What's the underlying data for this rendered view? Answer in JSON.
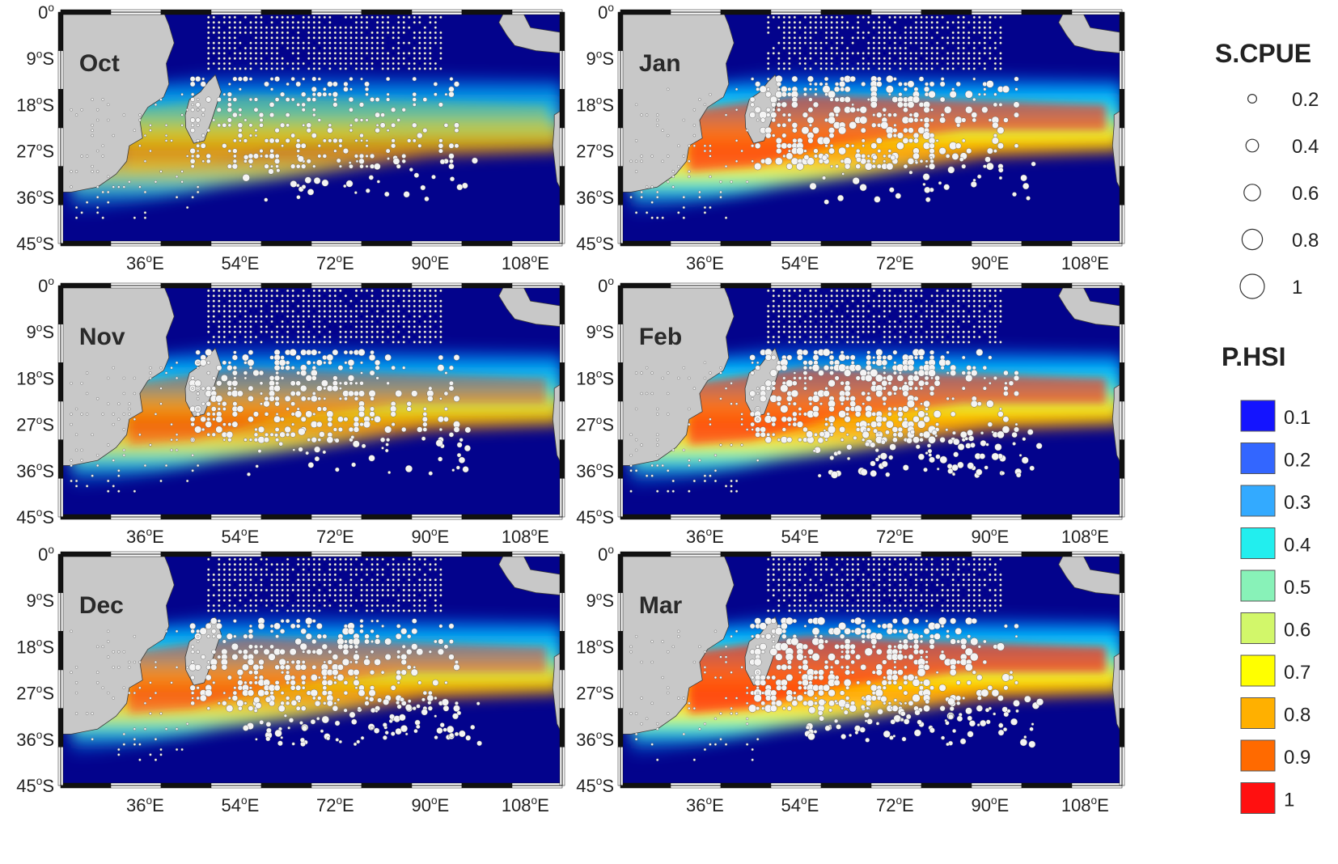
{
  "panels": [
    {
      "id": "oct",
      "month": "Oct",
      "intensity": 0.55
    },
    {
      "id": "jan",
      "month": "Jan",
      "intensity": 0.95
    },
    {
      "id": "nov",
      "month": "Nov",
      "intensity": 0.8
    },
    {
      "id": "feb",
      "month": "Feb",
      "intensity": 0.95
    },
    {
      "id": "dec",
      "month": "Dec",
      "intensity": 0.85
    },
    {
      "id": "mar",
      "month": "Mar",
      "intensity": 1.0
    }
  ],
  "axes": {
    "lat_ticks": [
      {
        "value": 0,
        "label": "0",
        "sup": "o",
        "suffix": ""
      },
      {
        "value": -9,
        "label": "9",
        "sup": "o",
        "suffix": "S"
      },
      {
        "value": -18,
        "label": "18",
        "sup": "o",
        "suffix": "S"
      },
      {
        "value": -27,
        "label": "27",
        "sup": "o",
        "suffix": "S"
      },
      {
        "value": -36,
        "label": "36",
        "sup": "o",
        "suffix": "S"
      },
      {
        "value": -45,
        "label": "45",
        "sup": "o",
        "suffix": "S"
      }
    ],
    "lon_ticks": [
      {
        "value": 36,
        "label": "36",
        "sup": "o",
        "suffix": "E"
      },
      {
        "value": 54,
        "label": "54",
        "sup": "o",
        "suffix": "E"
      },
      {
        "value": 72,
        "label": "72",
        "sup": "o",
        "suffix": "E"
      },
      {
        "value": 90,
        "label": "90",
        "sup": "o",
        "suffix": "E"
      },
      {
        "value": 108,
        "label": "108",
        "sup": "o",
        "suffix": "E"
      }
    ],
    "lon_range": [
      20,
      115
    ],
    "lat_range": [
      -45,
      0
    ]
  },
  "legend": {
    "scpue_title": "S.CPUE",
    "scpue_items": [
      {
        "value": 0.2,
        "label": "0.2"
      },
      {
        "value": 0.4,
        "label": "0.4"
      },
      {
        "value": 0.6,
        "label": "0.6"
      },
      {
        "value": 0.8,
        "label": "0.8"
      },
      {
        "value": 1.0,
        "label": "1"
      }
    ],
    "phsi_title": "P.HSI",
    "phsi_items": [
      {
        "label": "0.1",
        "color": "#1414ff"
      },
      {
        "label": "0.2",
        "color": "#3366ff"
      },
      {
        "label": "0.3",
        "color": "#33aaff"
      },
      {
        "label": "0.4",
        "color": "#22eeee"
      },
      {
        "label": "0.5",
        "color": "#88f2b8"
      },
      {
        "label": "0.6",
        "color": "#d2f76a"
      },
      {
        "label": "0.7",
        "color": "#ffff00"
      },
      {
        "label": "0.8",
        "color": "#ffb000"
      },
      {
        "label": "0.9",
        "color": "#ff6a00"
      },
      {
        "label": "1",
        "color": "#ff1010"
      }
    ]
  },
  "colors": {
    "ocean": "#03038c",
    "land": "#c8c8c8",
    "coast": "#3a3a3a",
    "point_fill": "#f4f4f4",
    "point_stroke": "#555555"
  }
}
